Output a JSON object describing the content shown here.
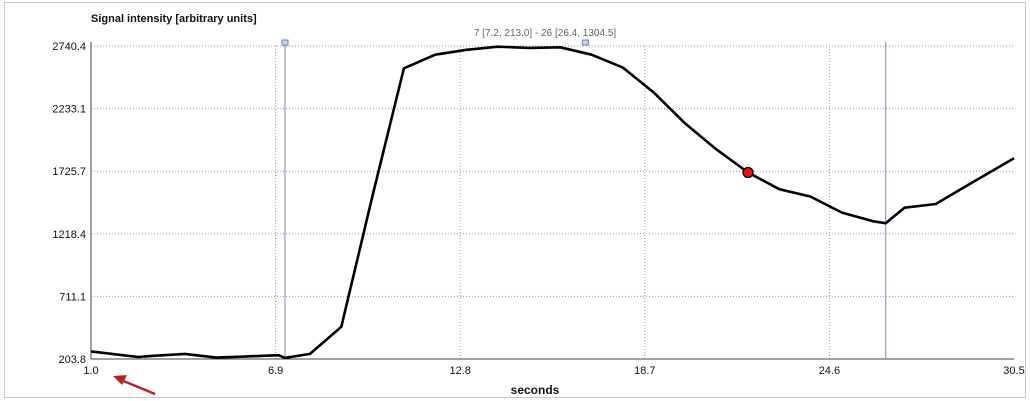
{
  "chart_data": {
    "type": "line",
    "ylabel": "Signal intensity [arbitrary units]",
    "xlabel": "seconds",
    "range_label": "7 [7.2, 213.0] - 26 [26.4, 1304.5]",
    "xlim": [
      1.0,
      30.5
    ],
    "ylim": [
      203.8,
      2740.4
    ],
    "x_ticks": [
      "1.0",
      "6.9",
      "12.8",
      "18.7",
      "24.6",
      "30.5"
    ],
    "y_ticks": [
      "203.8",
      "711.1",
      "1218.4",
      "1725.7",
      "2233.1",
      "2740.4"
    ],
    "grid": "dotted",
    "x": [
      1.0,
      2.5,
      3.0,
      4.0,
      5.0,
      6.0,
      7.0,
      7.2,
      8.0,
      9.0,
      10.0,
      11.0,
      12.0,
      13.0,
      14.0,
      15.0,
      16.0,
      17.0,
      18.0,
      19.0,
      20.0,
      21.0,
      22.0,
      23.0,
      24.0,
      25.0,
      26.0,
      26.4,
      27.0,
      28.0,
      29.0,
      30.5
    ],
    "series": [
      {
        "values": [
          265,
          220,
          230,
          245,
          215,
          225,
          235,
          213.0,
          245,
          465,
          1530,
          2560,
          2670,
          2710,
          2735,
          2725,
          2730,
          2670,
          2565,
          2360,
          2110,
          1900,
          1715,
          1580,
          1520,
          1390,
          1320,
          1304.5,
          1430,
          1460,
          1610,
          1830
        ],
        "color": "#000000"
      }
    ],
    "cursor": {
      "x": 22.0,
      "y": 1715,
      "color": "#ee1111"
    },
    "markers": [
      7.2,
      26.4
    ],
    "marker_color": "#8080cc"
  }
}
